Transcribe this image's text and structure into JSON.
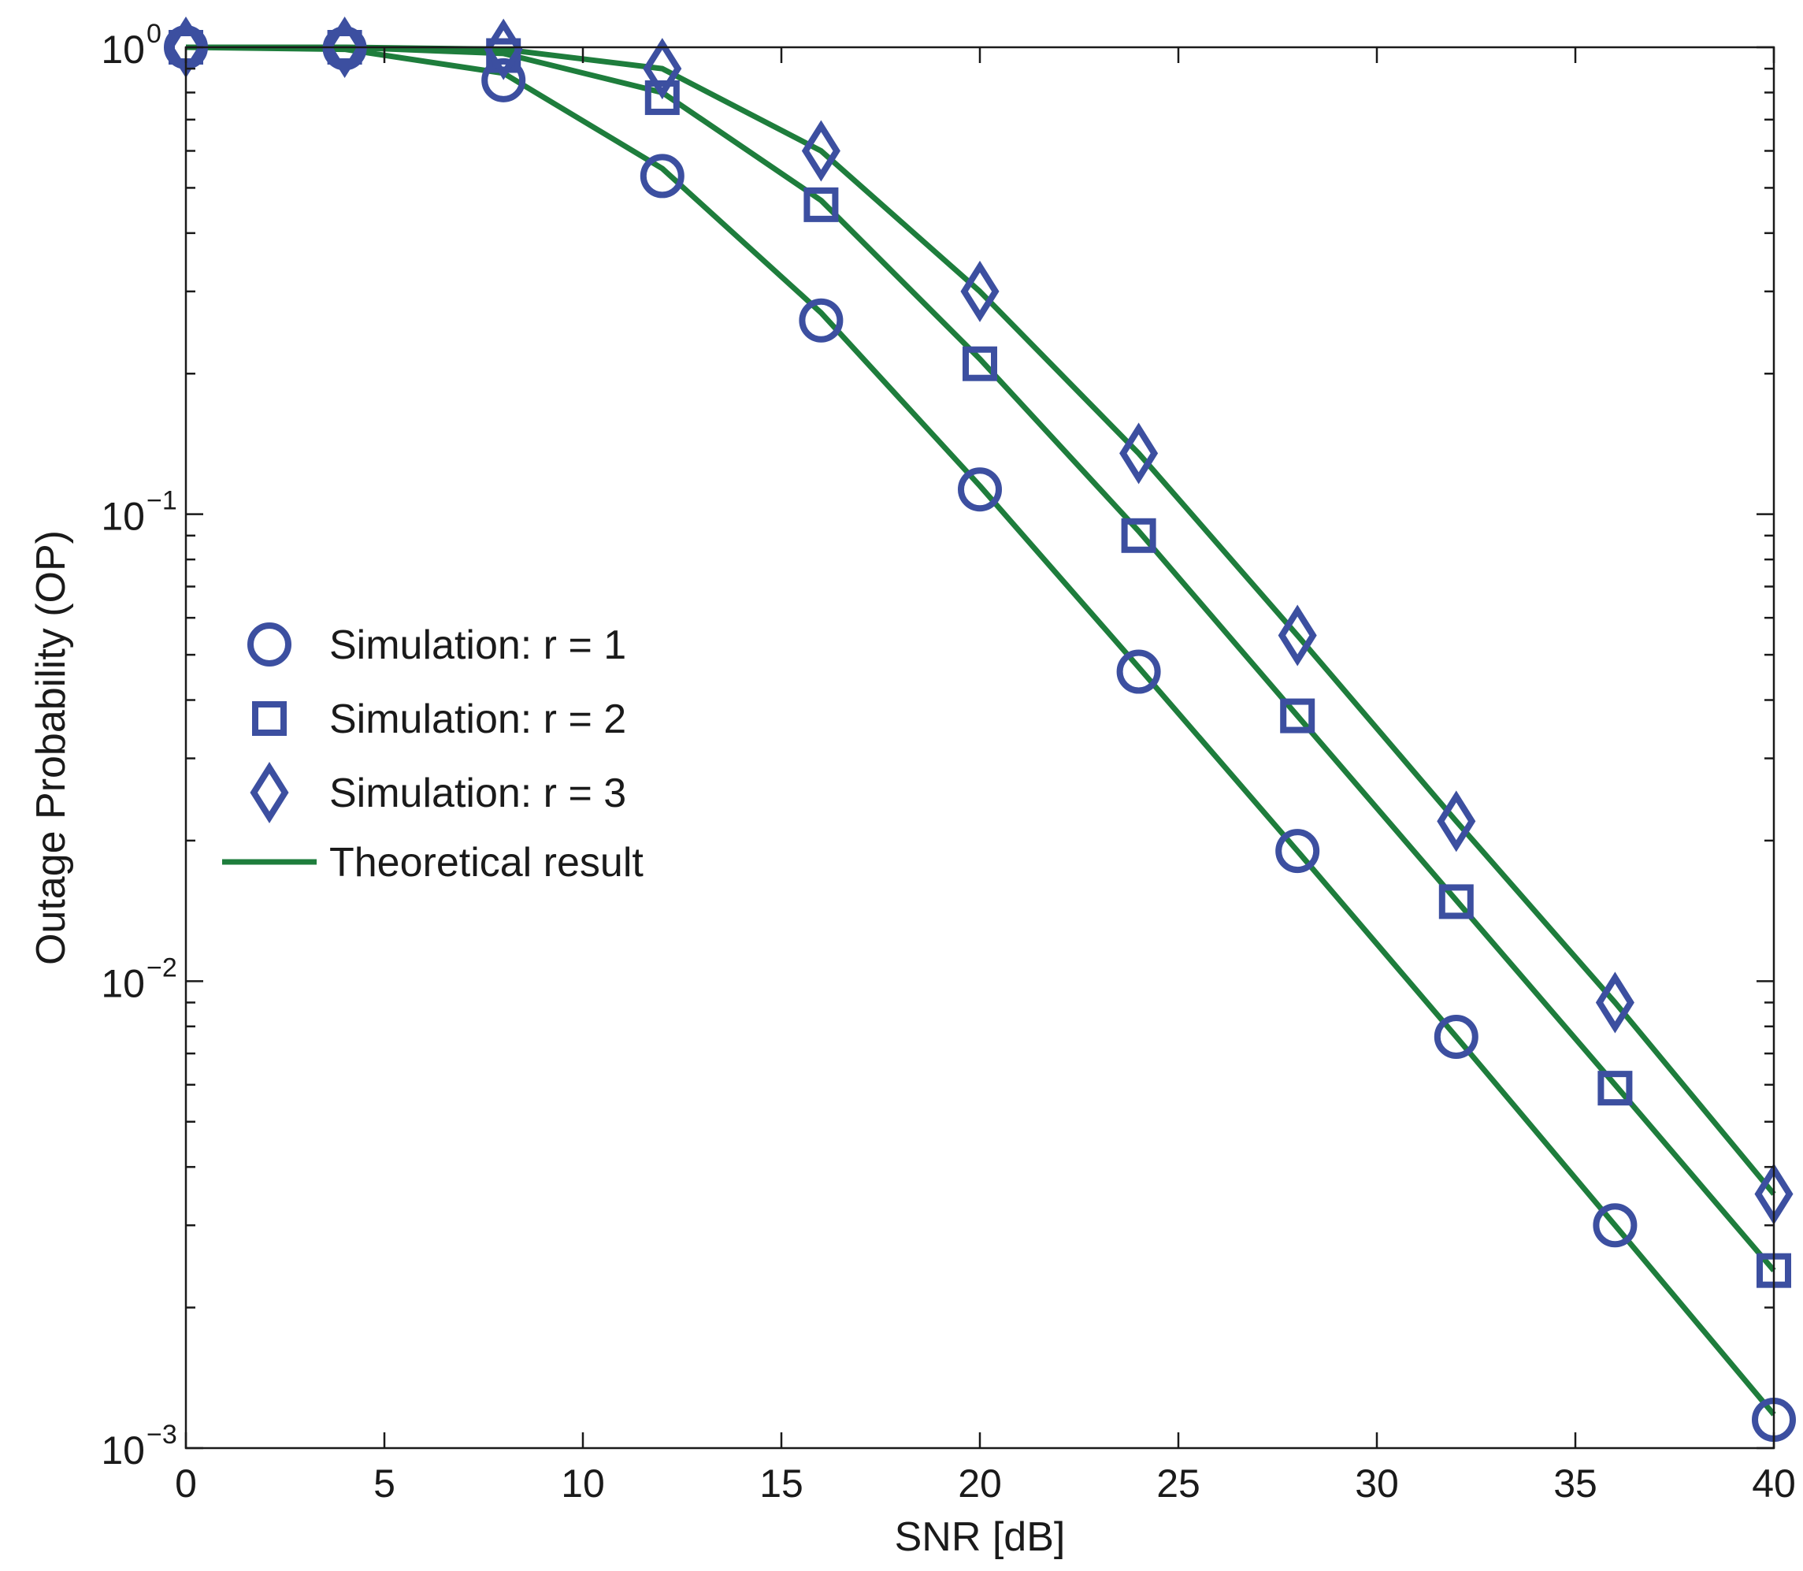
{
  "chart_data": {
    "type": "line",
    "title": "",
    "xlabel": "SNR [dB]",
    "ylabel": "Outage Probability (OP)",
    "xlim": [
      0,
      40
    ],
    "ylim": [
      0.001,
      1
    ],
    "yscale": "log",
    "grid": false,
    "x_ticks": [
      0,
      5,
      10,
      15,
      20,
      25,
      30,
      35,
      40
    ],
    "x_tick_labels": [
      "0",
      "5",
      "10",
      "15",
      "20",
      "25",
      "30",
      "35",
      "40"
    ],
    "y_ticks": [
      {
        "value": 1,
        "base": "10",
        "exp": "0"
      },
      {
        "value": 0.1,
        "base": "10",
        "exp": "−1"
      },
      {
        "value": 0.01,
        "base": "10",
        "exp": "−2"
      },
      {
        "value": 0.001,
        "base": "10",
        "exp": "−3"
      }
    ],
    "legend_position": "center-left",
    "colors": {
      "marker": "#3c4fa0",
      "line": "#1e7d3c",
      "axis": "#1a1a1a"
    },
    "series": [
      {
        "name": "Simulation: r = 1",
        "kind": "marker",
        "marker": "circle",
        "x": [
          0,
          4,
          8,
          12,
          16,
          20,
          24,
          28,
          32,
          36,
          40
        ],
        "y": [
          1.0,
          0.995,
          0.85,
          0.53,
          0.26,
          0.113,
          0.046,
          0.019,
          0.0076,
          0.003,
          0.00115
        ]
      },
      {
        "name": "Simulation: r = 2",
        "kind": "marker",
        "marker": "square",
        "x": [
          0,
          4,
          8,
          12,
          16,
          20,
          24,
          28,
          32,
          36,
          40
        ],
        "y": [
          1.0,
          1.0,
          0.96,
          0.78,
          0.46,
          0.21,
          0.09,
          0.037,
          0.0148,
          0.0059,
          0.0024
        ]
      },
      {
        "name": "Simulation: r = 3",
        "kind": "marker",
        "marker": "diamond",
        "x": [
          0,
          4,
          8,
          12,
          16,
          20,
          24,
          28,
          32,
          36,
          40
        ],
        "y": [
          1.0,
          1.0,
          0.99,
          0.9,
          0.6,
          0.3,
          0.135,
          0.055,
          0.022,
          0.009,
          0.0035
        ]
      },
      {
        "name": "Theoretical result",
        "kind": "line",
        "curves": [
          {
            "for": "r = 1",
            "x": [
              0,
              4,
              8,
              12,
              16,
              20,
              24,
              28,
              32,
              36,
              40
            ],
            "y": [
              1.0,
              0.99,
              0.88,
              0.55,
              0.27,
              0.115,
              0.047,
              0.019,
              0.0076,
              0.003,
              0.00118
            ]
          },
          {
            "for": "r = 2",
            "x": [
              0,
              4,
              8,
              12,
              16,
              20,
              24,
              28,
              32,
              36,
              40
            ],
            "y": [
              1.0,
              1.0,
              0.97,
              0.8,
              0.47,
              0.215,
              0.092,
              0.037,
              0.0149,
              0.006,
              0.0024
            ]
          },
          {
            "for": "r = 3",
            "x": [
              0,
              4,
              8,
              12,
              16,
              20,
              24,
              28,
              32,
              36,
              40
            ],
            "y": [
              1.0,
              1.0,
              0.99,
              0.9,
              0.6,
              0.3,
              0.135,
              0.055,
              0.022,
              0.009,
              0.0035
            ]
          }
        ]
      }
    ]
  }
}
